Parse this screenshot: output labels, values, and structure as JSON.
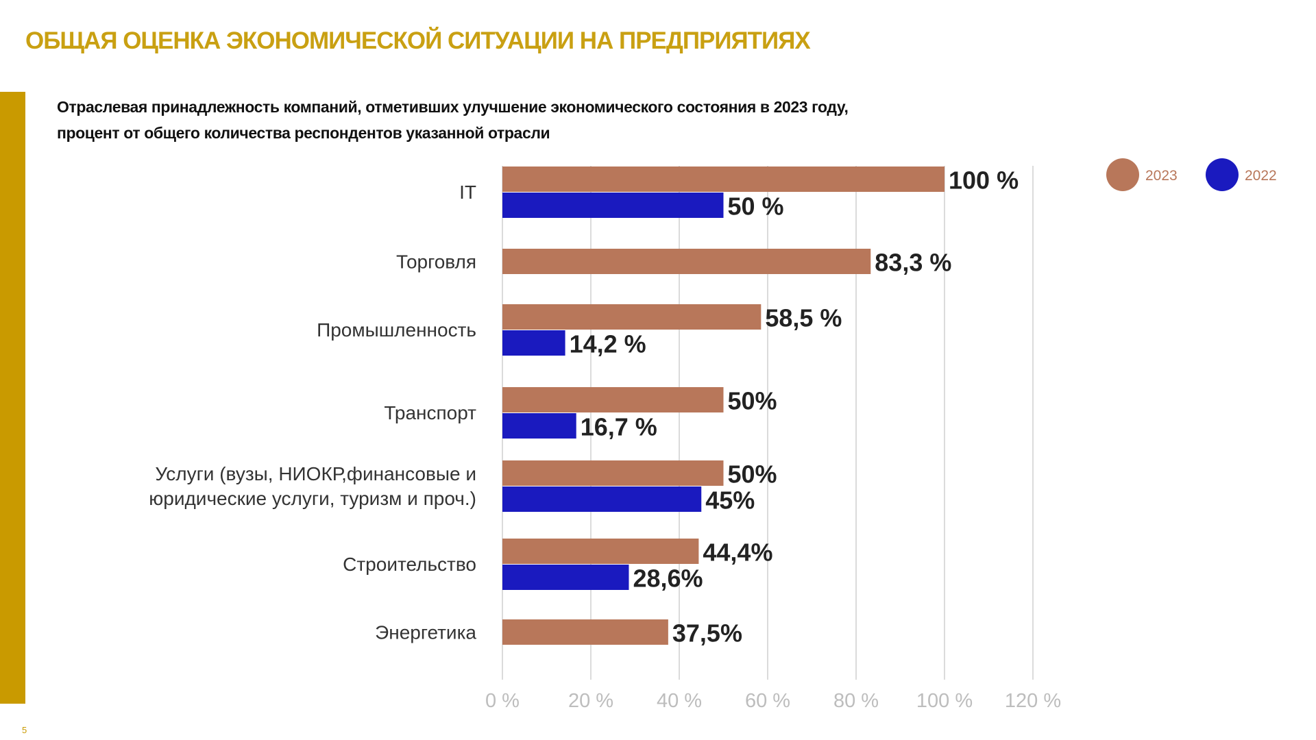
{
  "title": "ОБЩАЯ ОЦЕНКА ЭКОНОМИЧЕСКОЙ СИТУАЦИИ НА ПРЕДПРИЯТИЯХ",
  "subtitle_line1": "Отраслевая принадлежность компаний, отметивших улучшение экономического состояния в 2023 году,",
  "subtitle_line2": "процент от общего количества респондентов указанной отрасли",
  "page_number": "5",
  "chart_data": {
    "type": "bar",
    "orientation": "horizontal",
    "categories": [
      [
        "IT"
      ],
      [
        "Торговля"
      ],
      [
        "Промышленность"
      ],
      [
        "Транспорт"
      ],
      [
        "Услуги (вузы, НИОКР,финансовые и",
        "юридические услуги, туризм и проч.)"
      ],
      [
        "Строительство"
      ],
      [
        "Энергетика"
      ]
    ],
    "series": [
      {
        "name": "2023",
        "color": "#B8775A",
        "values": [
          100,
          83.3,
          58.5,
          50,
          50,
          44.4,
          37.5
        ],
        "labels": [
          "100 %",
          "83,3 %",
          "58,5 %",
          "50%",
          "50%",
          "44,4%",
          "37,5%"
        ]
      },
      {
        "name": "2022",
        "color": "#1A1ABF",
        "values": [
          50,
          null,
          14.2,
          16.7,
          45,
          28.6,
          null
        ],
        "labels": [
          "50 %",
          null,
          "14,2 %",
          "16,7 %",
          "45%",
          "28,6%",
          null
        ]
      }
    ],
    "xlim": [
      0,
      120
    ],
    "xticks": [
      "0 %",
      "20 %",
      "40 %",
      "60 %",
      "80 %",
      "100 %",
      "120 %"
    ],
    "grid": true,
    "legend": "top-right"
  }
}
